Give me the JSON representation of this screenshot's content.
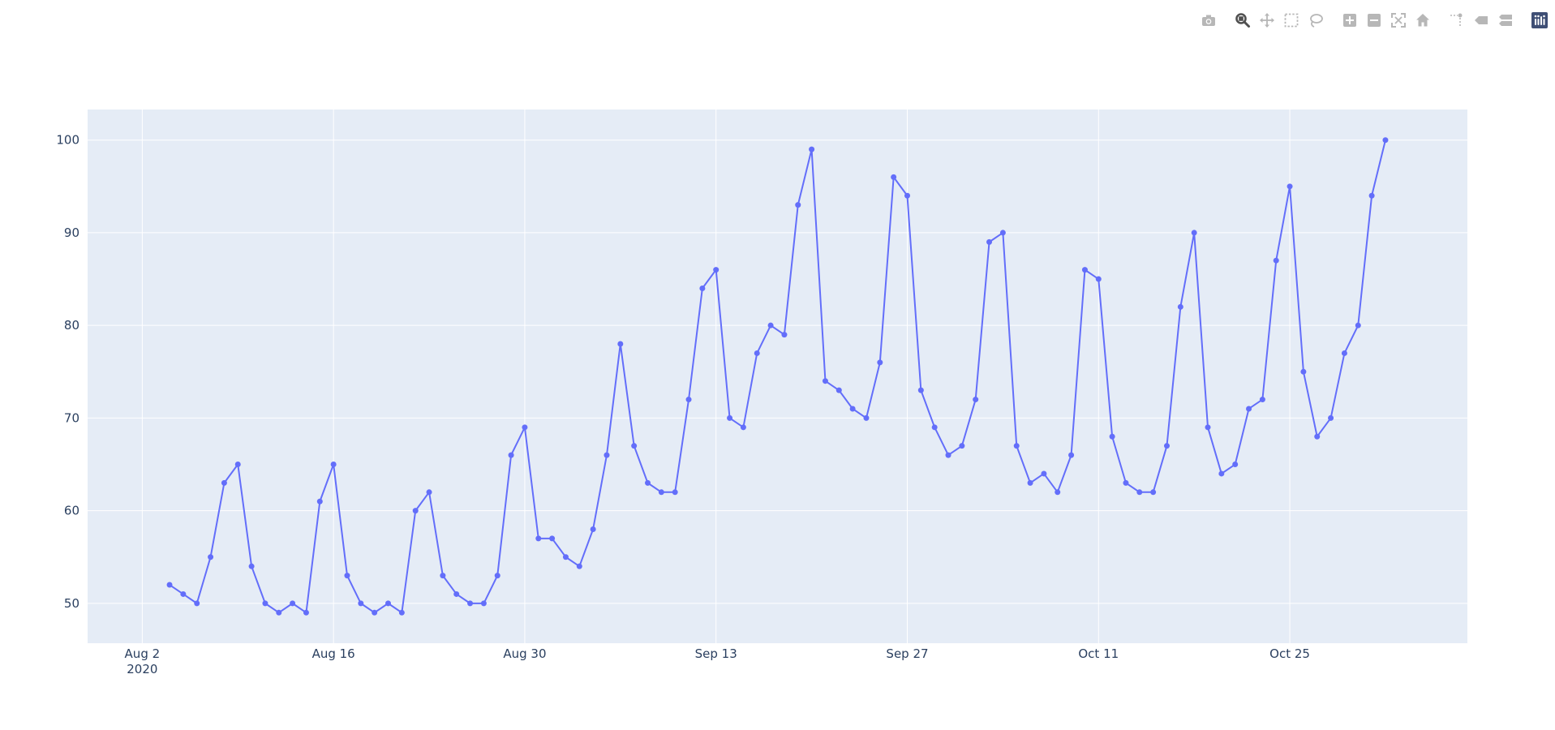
{
  "modebar": {
    "groups": [
      [
        "camera-icon"
      ],
      [
        "zoom-icon",
        "pan-icon",
        "box-select-icon",
        "lasso-select-icon"
      ],
      [
        "zoom-in-icon",
        "zoom-out-icon",
        "autoscale-icon",
        "home-icon"
      ],
      [
        "spike-lines-icon",
        "hover-closest-icon",
        "hover-compare-icon"
      ],
      [
        "plotly-logo-icon"
      ]
    ]
  },
  "colors": {
    "plot_bg": "#e5ecf6",
    "grid": "#ffffff",
    "line": "#636efa",
    "text": "#2a3f5f",
    "icon": "#b7b7b7",
    "icon_active": "#505050"
  },
  "chart_data": {
    "type": "line",
    "mode": "lines+markers",
    "x_start": "2020-08-04",
    "xlim": [
      "2020-07-29",
      "2020-11-07"
    ],
    "ylim": [
      45.7,
      103.3
    ],
    "x_ticks": [
      {
        "date": "2020-08-02",
        "label": "Aug 2",
        "sublabel": "2020"
      },
      {
        "date": "2020-08-16",
        "label": "Aug 16",
        "sublabel": ""
      },
      {
        "date": "2020-08-30",
        "label": "Aug 30",
        "sublabel": ""
      },
      {
        "date": "2020-09-13",
        "label": "Sep 13",
        "sublabel": ""
      },
      {
        "date": "2020-09-27",
        "label": "Sep 27",
        "sublabel": ""
      },
      {
        "date": "2020-10-11",
        "label": "Oct 11",
        "sublabel": ""
      },
      {
        "date": "2020-10-25",
        "label": "Oct 25",
        "sublabel": ""
      }
    ],
    "y_ticks": [
      50,
      60,
      70,
      80,
      90,
      100
    ],
    "grid": true,
    "series": [
      {
        "values": [
          52,
          51,
          50,
          55,
          63,
          65,
          54,
          50,
          49,
          50,
          49,
          61,
          65,
          53,
          50,
          49,
          50,
          49,
          60,
          62,
          53,
          51,
          50,
          50,
          53,
          66,
          69,
          57,
          57,
          55,
          54,
          58,
          66,
          78,
          67,
          63,
          62,
          62,
          72,
          84,
          86,
          70,
          69,
          77,
          80,
          79,
          93,
          99,
          74,
          73,
          71,
          70,
          76,
          96,
          94,
          73,
          69,
          66,
          67,
          72,
          89,
          90,
          67,
          63,
          64,
          62,
          66,
          86,
          85,
          68,
          63,
          62,
          62,
          67,
          82,
          90,
          69,
          64,
          65,
          71,
          72,
          87,
          95,
          75,
          68,
          70,
          77,
          80,
          94,
          100
        ]
      }
    ]
  }
}
